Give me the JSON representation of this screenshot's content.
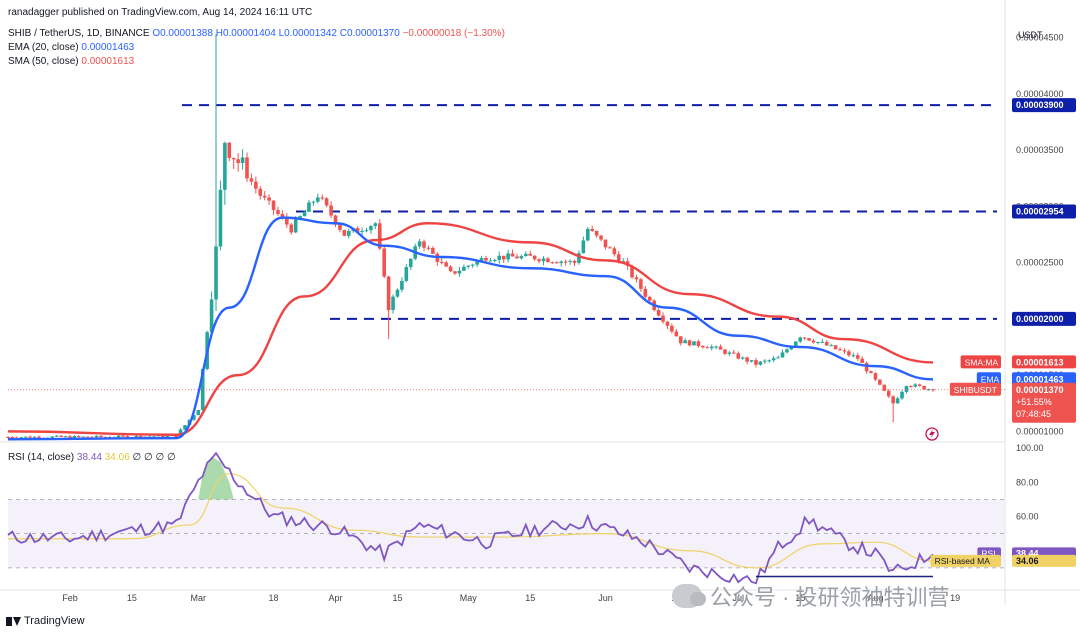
{
  "header": {
    "author_line": "ranadagger published on TradingView.com, Aug 14, 2024 16:11 UTC",
    "symbol": "SHIB / TetherUS, 1D, BINANCE",
    "ohlc": {
      "o": "O0.00001388",
      "h": "H0.00001404",
      "l": "L0.00001342",
      "c": "C0.00001370",
      "chg": "−0.00000018 (−1.30%)"
    },
    "ema_label": "EMA (20, close)",
    "ema_value": "0.00001463",
    "sma_label": "SMA (50, close)",
    "sma_value": "0.00001613"
  },
  "rsi_header": {
    "label": "RSI (14, close)",
    "rsi": "38.44",
    "ma": "34.06",
    "extra": "∅ ∅ ∅ ∅"
  },
  "footer": {
    "brand": "TradingView"
  },
  "watermark": "公众号 · 投研领袖特训营",
  "colors": {
    "up": "#26a69a",
    "down": "#ef5350",
    "ema": "#2962ff",
    "sma": "#ef4444",
    "rsi": "#7e57c2",
    "rsi_ma": "#f0d264",
    "level": "#0d1ea8"
  },
  "chart_data": [
    {
      "type": "candlestick",
      "currency": "USDT",
      "ylim": [
        9.5e-06,
        4.55e-05
      ],
      "y_ticks": [
        "0.00004500",
        "0.00004000",
        "0.00003500",
        "0.00003000",
        "0.00002500",
        "0.00002000",
        "0.00001500",
        "0.00001000"
      ],
      "y_tick_values": [
        4.5e-05,
        4e-05,
        3.5e-05,
        3e-05,
        2.5e-05,
        2e-05,
        1.5e-05,
        1e-05
      ],
      "x_ticks": [
        "Feb",
        "15",
        "Mar",
        "18",
        "Apr",
        "15",
        "May",
        "15",
        "Jun",
        "17",
        "Jul",
        "15",
        "Aug",
        "19"
      ],
      "levels": [
        {
          "label": "0.00003900",
          "value": 3.9e-05
        },
        {
          "label": "0.00002954",
          "value": 2.954e-05
        },
        {
          "label": "0.00002000",
          "value": 2e-05
        }
      ],
      "price_tags": [
        {
          "name": "SMA:MA",
          "value": "0.00001613"
        },
        {
          "name": "EMA",
          "value": "0.00001463"
        },
        {
          "name": "SHIBUSDT",
          "value": "0.00001370",
          "change": "+51.55%",
          "countdown": "07:48:45"
        }
      ],
      "series": {
        "price": {
          "dates": [
            "Jan 18",
            "Feb 10",
            "Feb 25",
            "Mar 1",
            "Mar 5",
            "Mar 7",
            "Mar 10",
            "Mar 15",
            "Mar 22",
            "Mar 28",
            "Apr 3",
            "Apr 10",
            "Apr 13",
            "Apr 20",
            "Apr 27",
            "May 5",
            "May 15",
            "May 25",
            "May 28",
            "Jun 5",
            "Jun 12",
            "Jun 18",
            "Jun 25",
            "Jul 5",
            "Jul 10",
            "Jul 15",
            "Jul 20",
            "Jul 28",
            "Aug 5",
            "Aug 8",
            "Aug 14"
          ],
          "close": [
            9.5e-06,
            9.5e-06,
            9.6e-06,
            1.2e-05,
            2.6e-05,
            3.6e-05,
            3.4e-05,
            3.1e-05,
            2.8e-05,
            3.1e-05,
            2.75e-05,
            2.85e-05,
            2.1e-05,
            2.7e-05,
            2.4e-05,
            2.55e-05,
            2.55e-05,
            2.5e-05,
            2.8e-05,
            2.5e-05,
            2.1e-05,
            1.8e-05,
            1.75e-05,
            1.6e-05,
            1.65e-05,
            1.85e-05,
            1.78e-05,
            1.65e-05,
            1.25e-05,
            1.42e-05,
            1.3696e-05
          ]
        },
        "ema20": {
          "dates": [
            "Jan 18",
            "Feb 25",
            "Mar 8",
            "Mar 20",
            "Apr 1",
            "Apr 12",
            "Apr 25",
            "May 15",
            "Jun 1",
            "Jun 15",
            "Jul 1",
            "Jul 15",
            "Aug 1",
            "Aug 14"
          ],
          "values": [
            9.3e-06,
            9.4e-06,
            2.1e-05,
            2.9e-05,
            2.85e-05,
            2.65e-05,
            2.55e-05,
            2.45e-05,
            2.38e-05,
            2.1e-05,
            1.85e-05,
            1.75e-05,
            1.58e-05,
            1.463e-05
          ]
        },
        "sma50": {
          "dates": [
            "Jan 18",
            "Feb 25",
            "Mar 10",
            "Mar 25",
            "Apr 10",
            "Apr 22",
            "May 15",
            "Jun 1",
            "Jun 20",
            "Jul 10",
            "Jul 25",
            "Aug 14"
          ],
          "values": [
            1e-05,
            9.7e-06,
            1.5e-05,
            2.2e-05,
            2.7e-05,
            2.85e-05,
            2.68e-05,
            2.52e-05,
            2.22e-05,
            2.02e-05,
            1.82e-05,
            1.613e-05
          ]
        }
      }
    },
    {
      "type": "line",
      "title": "RSI (14, close)",
      "ylim": [
        20,
        100
      ],
      "y_ticks": [
        "100.00",
        "80.00",
        "60.00",
        "40.00"
      ],
      "y_tick_values": [
        100,
        80,
        60,
        40
      ],
      "bands": [
        70,
        30
      ],
      "series": [
        {
          "name": "RSI",
          "last": "38.44",
          "dates": [
            "Jan 18",
            "Feb 1",
            "Feb 15",
            "Feb 25",
            "Mar 2",
            "Mar 5",
            "Mar 10",
            "Mar 18",
            "Apr 1",
            "Apr 12",
            "Apr 20",
            "May 5",
            "May 15",
            "May 28",
            "Jun 10",
            "Jun 20",
            "Jul 5",
            "Jul 10",
            "Jul 17",
            "Jul 25",
            "Aug 1",
            "Aug 5",
            "Aug 14"
          ],
          "values": [
            48,
            47,
            52,
            55,
            85,
            95,
            80,
            60,
            53,
            38,
            55,
            45,
            52,
            57,
            45,
            30,
            22,
            42,
            58,
            45,
            38,
            27,
            38
          ]
        },
        {
          "name": "RSI-based MA",
          "last": "34.06",
          "dates": [
            "Jan 18",
            "Feb 15",
            "Feb 28",
            "Mar 8",
            "Mar 20",
            "Apr 5",
            "Apr 20",
            "May 10",
            "Jun 1",
            "Jun 20",
            "Jul 5",
            "Jul 20",
            "Aug 1",
            "Aug 14"
          ],
          "values": [
            47,
            47,
            55,
            85,
            65,
            52,
            48,
            48,
            50,
            40,
            30,
            44,
            45,
            34
          ]
        }
      ],
      "divergence_line": true
    }
  ]
}
